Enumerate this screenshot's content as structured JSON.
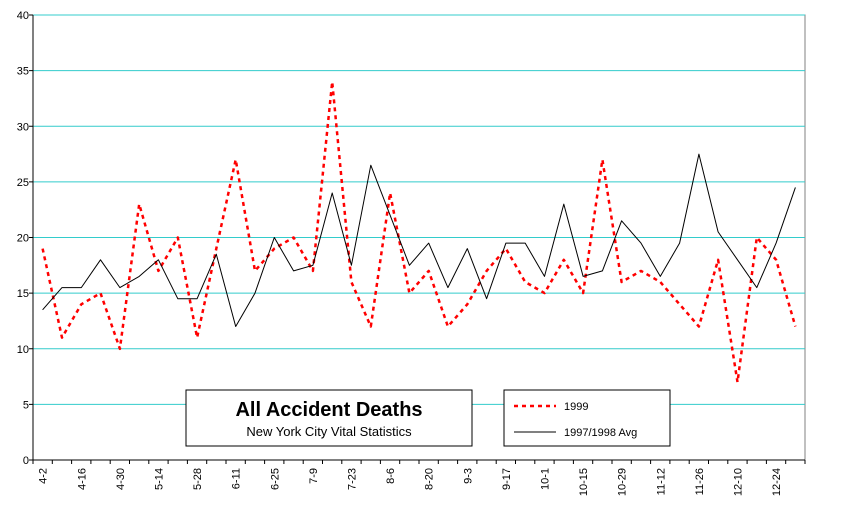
{
  "chart_data": {
    "type": "line",
    "title": "All Accident Deaths",
    "subtitle": "New York City Vital Statistics",
    "xlabel": "",
    "ylabel": "",
    "ylim": [
      0,
      40
    ],
    "yticks": [
      0,
      5,
      10,
      15,
      20,
      25,
      30,
      35,
      40
    ],
    "grid": true,
    "legend_position": "bottom-center",
    "x_tick_labels": [
      "4-2",
      "4-16",
      "4-30",
      "5-14",
      "5-28",
      "6-11",
      "6-25",
      "7-9",
      "7-23",
      "8-6",
      "8-20",
      "9-3",
      "9-17",
      "10-1",
      "10-15",
      "10-29",
      "11-12",
      "11-26",
      "12-10",
      "12-24"
    ],
    "series": [
      {
        "name": "1999",
        "color": "#ff0000",
        "style": "dashed",
        "values": [
          19,
          11,
          14,
          15,
          10,
          23,
          17,
          20,
          11,
          19,
          27,
          17,
          19,
          20,
          17,
          34,
          16,
          12,
          24,
          15,
          17,
          12,
          14,
          17,
          19,
          16,
          15,
          18,
          15,
          27,
          16,
          17,
          16,
          14,
          12,
          18,
          7,
          20,
          18,
          12
        ]
      },
      {
        "name": "1997/1998 Avg",
        "color": "#000000",
        "style": "solid",
        "values": [
          13.5,
          15.5,
          15.5,
          18,
          15.5,
          16.5,
          18,
          14.5,
          14.5,
          18.5,
          12,
          15,
          20,
          17,
          17.5,
          24,
          17.5,
          26.5,
          22,
          17.5,
          19.5,
          15.5,
          19,
          14.5,
          19.5,
          19.5,
          16.5,
          23,
          16.5,
          17,
          21.5,
          19.5,
          16.5,
          19.5,
          27.5,
          20.5,
          18,
          15.5,
          19.5,
          24.5
        ]
      }
    ]
  },
  "colors": {
    "gridline": "#33cccc",
    "background": "#ffffff"
  }
}
